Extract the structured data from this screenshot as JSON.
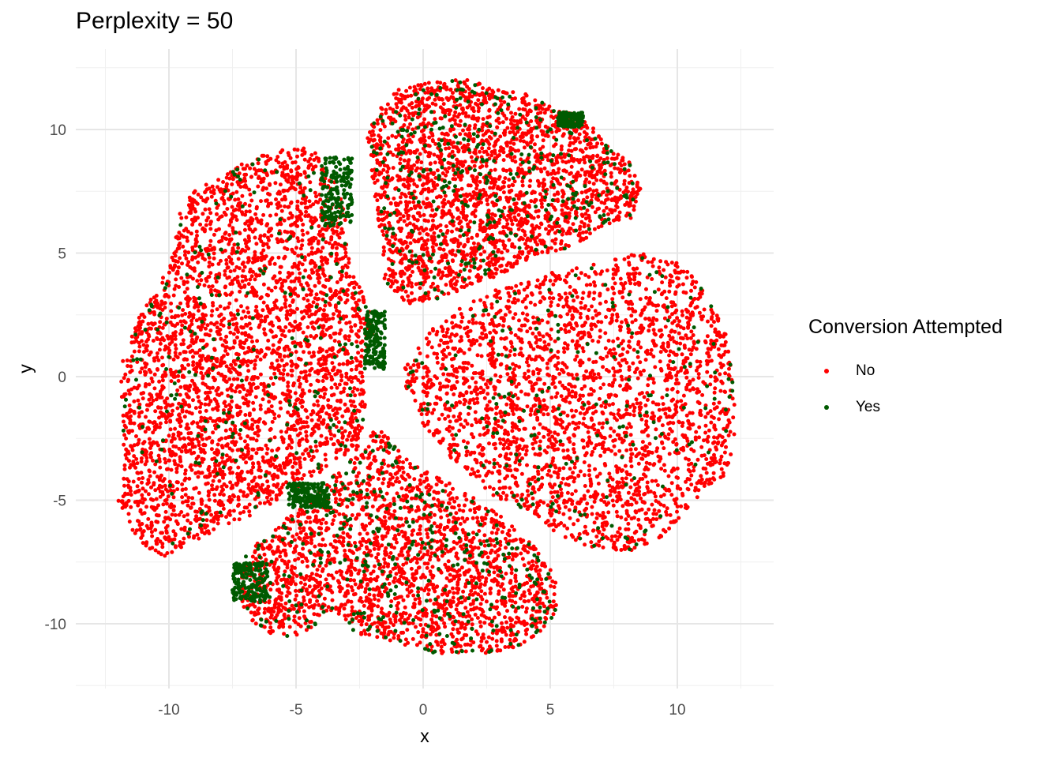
{
  "chart_data": {
    "type": "scatter",
    "title": "Perplexity = 50",
    "xlabel": "x",
    "ylabel": "y",
    "xlim": [
      -12.6,
      13.5
    ],
    "ylim": [
      -12.5,
      12.5
    ],
    "x_ticks": [
      -10,
      -5,
      0,
      5,
      10
    ],
    "y_ticks": [
      -10,
      -5,
      0,
      5,
      10
    ],
    "grid": true,
    "legend": {
      "title": "Conversion Attempted",
      "placement": "right",
      "entries": [
        {
          "name": "No",
          "color": "#ff0000"
        },
        {
          "name": "Yes",
          "color": "#005a00"
        }
      ]
    },
    "clusters": [
      {
        "label": "left",
        "polygon": [
          [
            -11.8,
            -3
          ],
          [
            -11.9,
            0.5
          ],
          [
            -11.2,
            2.6
          ],
          [
            -10.5,
            3.5
          ],
          [
            -9.8,
            5.2
          ],
          [
            -9.6,
            6.8
          ],
          [
            -9,
            7.5
          ],
          [
            -7.5,
            8.5
          ],
          [
            -5.5,
            9.3
          ],
          [
            -4.2,
            9.2
          ],
          [
            -3.4,
            7.8
          ],
          [
            -3.0,
            6.5
          ],
          [
            -2.9,
            4.5
          ],
          [
            -2.2,
            3.0
          ],
          [
            -1.9,
            1.8
          ],
          [
            -2.4,
            0.5
          ],
          [
            -2.2,
            -1.5
          ],
          [
            -2.6,
            -3.0
          ],
          [
            -3.5,
            -3.5
          ],
          [
            -5,
            -4.5
          ],
          [
            -7,
            -5.8
          ],
          [
            -8.5,
            -6.4
          ],
          [
            -10.2,
            -7.3
          ],
          [
            -11.2,
            -6.8
          ],
          [
            -12,
            -5
          ]
        ],
        "yes_fraction": 0.05
      },
      {
        "label": "top",
        "polygon": [
          [
            -2,
            8
          ],
          [
            -2.2,
            9.7
          ],
          [
            -1.8,
            10.8
          ],
          [
            -1,
            11.6
          ],
          [
            0.5,
            12
          ],
          [
            1.8,
            12.0
          ],
          [
            3,
            11.6
          ],
          [
            4.2,
            11.4
          ],
          [
            5.2,
            10.8
          ],
          [
            5.8,
            10.7
          ],
          [
            6.8,
            10
          ],
          [
            7.4,
            9.2
          ],
          [
            8.2,
            8.6
          ],
          [
            8.6,
            7.8
          ],
          [
            8.2,
            6.4
          ],
          [
            7,
            6.0
          ],
          [
            6,
            5.3
          ],
          [
            4.2,
            4.8
          ],
          [
            3,
            4.1
          ],
          [
            1.8,
            3.6
          ],
          [
            0.6,
            3.1
          ],
          [
            -0.6,
            2.9
          ],
          [
            -1.5,
            3.6
          ],
          [
            -1.6,
            5.5
          ],
          [
            -1.8,
            6.5
          ]
        ],
        "yes_fraction": 0.12
      },
      {
        "label": "right",
        "polygon": [
          [
            -0.8,
            0.2
          ],
          [
            0.2,
            1.8
          ],
          [
            1.5,
            2.8
          ],
          [
            3,
            3.6
          ],
          [
            5,
            4.2
          ],
          [
            7,
            4.6
          ],
          [
            8.5,
            5.0
          ],
          [
            10,
            4.7
          ],
          [
            11,
            3.6
          ],
          [
            11.9,
            1.8
          ],
          [
            12.2,
            0.2
          ],
          [
            12.3,
            -2
          ],
          [
            12,
            -3.8
          ],
          [
            11.4,
            -4.5
          ],
          [
            10.5,
            -5.2
          ],
          [
            9.5,
            -6.4
          ],
          [
            8,
            -7.2
          ],
          [
            7,
            -7.0
          ],
          [
            5.5,
            -6.6
          ],
          [
            4.5,
            -5.6
          ],
          [
            3,
            -5
          ],
          [
            1.8,
            -4
          ],
          [
            0.8,
            -3.0
          ],
          [
            0,
            -2.0
          ],
          [
            -0.6,
            -1
          ]
        ],
        "yes_fraction": 0.06
      },
      {
        "label": "bottom",
        "polygon": [
          [
            -7.2,
            -8.6
          ],
          [
            -7,
            -7.2
          ],
          [
            -6.2,
            -6.4
          ],
          [
            -4.8,
            -5.3
          ],
          [
            -3.6,
            -4.0
          ],
          [
            -2.5,
            -3.0
          ],
          [
            -1.8,
            -2.0
          ],
          [
            -0.5,
            -3.5
          ],
          [
            1,
            -4.3
          ],
          [
            2.5,
            -5.2
          ],
          [
            3.5,
            -6.0
          ],
          [
            4.5,
            -7.0
          ],
          [
            5.2,
            -8.0
          ],
          [
            5.3,
            -9.3
          ],
          [
            4.8,
            -10.3
          ],
          [
            4,
            -10.9
          ],
          [
            2.5,
            -11.2
          ],
          [
            1,
            -11.3
          ],
          [
            -0.5,
            -11.0
          ],
          [
            -2,
            -10.5
          ],
          [
            -2.6,
            -10.4
          ],
          [
            -3.5,
            -9.6
          ],
          [
            -5,
            -10.6
          ],
          [
            -6.1,
            -10.4
          ],
          [
            -7,
            -9.7
          ]
        ],
        "yes_fraction": 0.14
      }
    ]
  }
}
